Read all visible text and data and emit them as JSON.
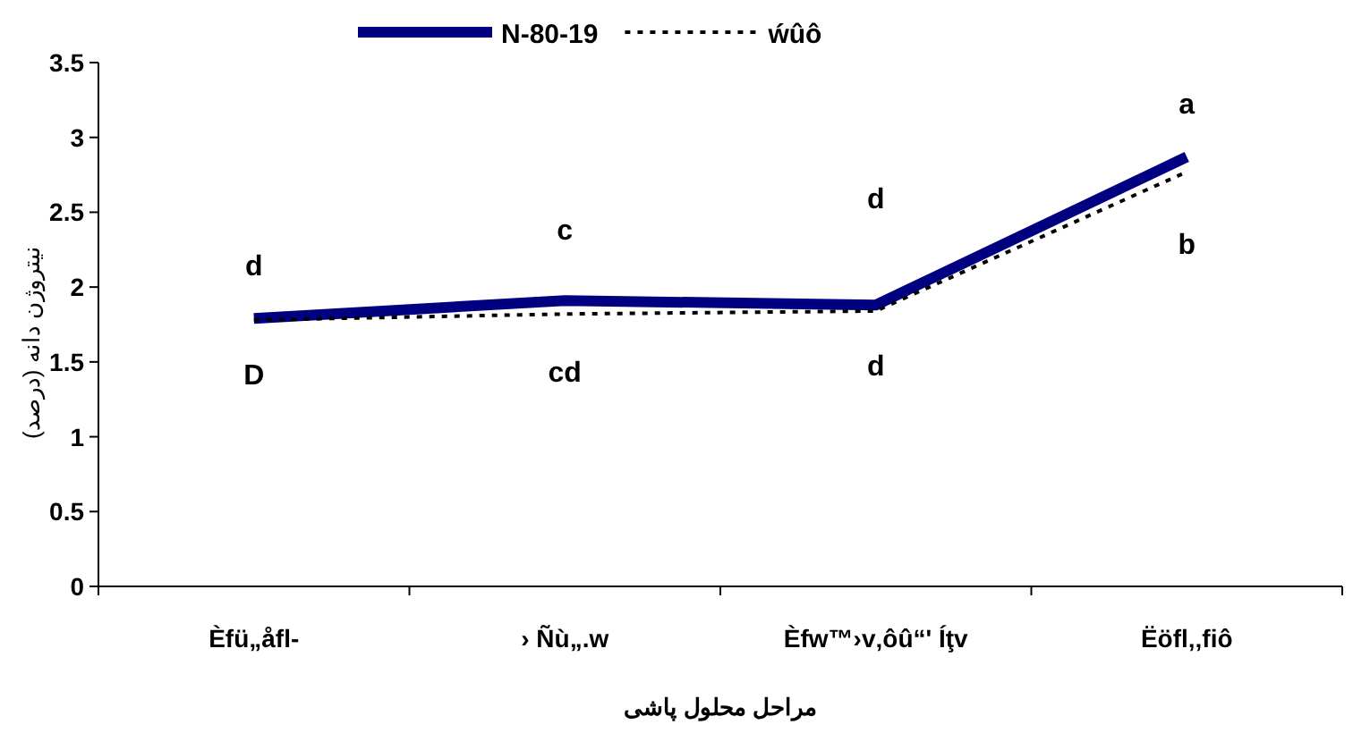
{
  "chart_data": {
    "type": "line",
    "xlabel": "مراحل محلول پاشی",
    "ylabel": "نیتروژن دانه (درصد)",
    "categories": [
      "Èfü„åfl‐",
      "› Ñù„.w",
      "Èfw™›v‚ôû“' Íţv",
      "Ëöfl‚‚fiô"
    ],
    "series": [
      {
        "name": "N-80-19",
        "color": "#000080",
        "line_style": "solid",
        "values": [
          1.79,
          1.91,
          1.88,
          2.87
        ]
      },
      {
        "name": "ẃûô",
        "color": "#000000",
        "line_style": "dotted",
        "values": [
          1.78,
          1.82,
          1.84,
          2.77
        ]
      }
    ],
    "ylim": [
      0,
      3.5
    ],
    "yticks": [
      0,
      0.5,
      1,
      1.5,
      2,
      2.5,
      3,
      3.5
    ],
    "grid": false,
    "legend": "top",
    "marker": "none",
    "annotations": [
      "d",
      "D",
      "c",
      "cd",
      "d",
      "d",
      "a",
      "b"
    ]
  }
}
